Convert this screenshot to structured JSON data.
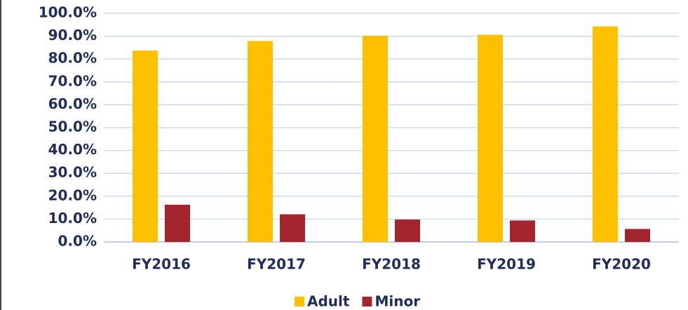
{
  "chart_data": {
    "type": "bar",
    "categories": [
      "FY2016",
      "FY2017",
      "FY2018",
      "FY2019",
      "FY2020"
    ],
    "series": [
      {
        "name": "Adult",
        "color": "#ffc000",
        "values": [
          83.7,
          87.9,
          90.2,
          90.6,
          94.3
        ]
      },
      {
        "name": "Minor",
        "color": "#a4262c",
        "values": [
          16.3,
          12.1,
          9.8,
          9.4,
          5.7
        ]
      }
    ],
    "ylim": [
      0,
      100
    ],
    "yticks": [
      {
        "value": 0,
        "label": "0.0%"
      },
      {
        "value": 10,
        "label": "10.0%"
      },
      {
        "value": 20,
        "label": "20.0%"
      },
      {
        "value": 30,
        "label": "30.0%"
      },
      {
        "value": 40,
        "label": "40.0%"
      },
      {
        "value": 50,
        "label": "50.0%"
      },
      {
        "value": 60,
        "label": "60.0%"
      },
      {
        "value": 70,
        "label": "70.0%"
      },
      {
        "value": 80,
        "label": "80.0%"
      },
      {
        "value": 90,
        "label": "90.0%"
      },
      {
        "value": 100,
        "label": "100.0%"
      }
    ],
    "grid": true,
    "legend": "bottom"
  }
}
